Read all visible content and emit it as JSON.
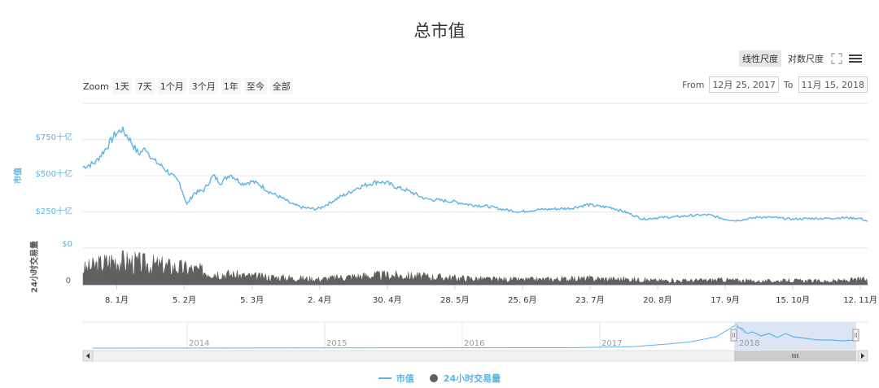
{
  "colors": {
    "market_cap": "#5ab4e6",
    "volume": "#606060",
    "navigator_mask": "#c5d3ec"
  },
  "toolbar": {
    "linear_scale": "线性尺度",
    "log_scale": "对数尺度",
    "active": "linear",
    "fullscreen_icon": "fullscreen-icon",
    "menu_icon": "hamburger-menu-icon"
  },
  "range_selector": {
    "zoom_label": "Zoom",
    "buttons": [
      "1天",
      "7天",
      "1个月",
      "3个月",
      "1年",
      "至今",
      "全部"
    ],
    "from_label": "From",
    "from_value": "12月 25, 2017",
    "to_label": "To",
    "to_value": "11月 15, 2018"
  },
  "chart_data": {
    "type": "area",
    "title": "总市值",
    "y_axes": [
      {
        "title": "市值",
        "ticks": [
          "$750十亿",
          "$500十亿",
          "$250十亿",
          "$0"
        ]
      },
      {
        "title": "24小时交易量",
        "ticks": [
          "0"
        ]
      }
    ],
    "x_ticks": [
      "8. 1月",
      "5. 2月",
      "5. 3月",
      "2. 4月",
      "30. 4月",
      "28. 5月",
      "25. 6月",
      "23. 7月",
      "20. 8月",
      "17. 9月",
      "15. 10月",
      "12. 11月"
    ],
    "series": [
      {
        "name": "市值",
        "unit": "十亿美元",
        "x": [
          "2017-12-25",
          "2017-12-30",
          "2018-01-04",
          "2018-01-07",
          "2018-01-10",
          "2018-01-13",
          "2018-01-17",
          "2018-01-20",
          "2018-01-23",
          "2018-01-27",
          "2018-01-31",
          "2018-02-03",
          "2018-02-06",
          "2018-02-09",
          "2018-02-13",
          "2018-02-17",
          "2018-02-20",
          "2018-02-24",
          "2018-03-01",
          "2018-03-05",
          "2018-03-08",
          "2018-03-12",
          "2018-03-18",
          "2018-03-22",
          "2018-03-26",
          "2018-03-31",
          "2018-04-02",
          "2018-04-06",
          "2018-04-10",
          "2018-04-14",
          "2018-04-18",
          "2018-04-22",
          "2018-04-26",
          "2018-04-30",
          "2018-05-04",
          "2018-05-08",
          "2018-05-12",
          "2018-05-16",
          "2018-05-22",
          "2018-05-28",
          "2018-06-03",
          "2018-06-10",
          "2018-06-16",
          "2018-06-24",
          "2018-07-01",
          "2018-07-08",
          "2018-07-15",
          "2018-07-22",
          "2018-07-26",
          "2018-08-01",
          "2018-08-08",
          "2018-08-14",
          "2018-08-20",
          "2018-08-27",
          "2018-09-03",
          "2018-09-10",
          "2018-09-17",
          "2018-09-21",
          "2018-09-24",
          "2018-10-01",
          "2018-10-08",
          "2018-10-11",
          "2018-10-15",
          "2018-10-22",
          "2018-10-29",
          "2018-11-05",
          "2018-11-12",
          "2018-11-15"
        ],
        "y": [
          560,
          590,
          700,
          780,
          820,
          760,
          650,
          690,
          610,
          560,
          500,
          450,
          300,
          380,
          400,
          500,
          450,
          510,
          445,
          460,
          440,
          390,
          340,
          300,
          280,
          270,
          275,
          310,
          350,
          380,
          420,
          440,
          460,
          450,
          420,
          400,
          370,
          340,
          330,
          320,
          300,
          290,
          270,
          250,
          265,
          270,
          275,
          300,
          290,
          280,
          240,
          200,
          210,
          215,
          225,
          230,
          200,
          190,
          195,
          215,
          210,
          205,
          200,
          205,
          205,
          210,
          205,
          185
        ]
      },
      {
        "name": "24小时交易量",
        "x": [
          "2017-12-25",
          "2018-01-07",
          "2018-01-20",
          "2018-02-05",
          "2018-02-20",
          "2018-03-05",
          "2018-03-20",
          "2018-04-02",
          "2018-04-16",
          "2018-04-30",
          "2018-05-14",
          "2018-05-28",
          "2018-06-11",
          "2018-06-25",
          "2018-07-09",
          "2018-07-23",
          "2018-08-06",
          "2018-08-20",
          "2018-09-03",
          "2018-09-17",
          "2018-10-01",
          "2018-10-15",
          "2018-10-29",
          "2018-11-15"
        ],
        "y": [
          0.55,
          0.9,
          0.75,
          0.6,
          0.4,
          0.3,
          0.25,
          0.2,
          0.3,
          0.35,
          0.3,
          0.25,
          0.2,
          0.18,
          0.2,
          0.22,
          0.2,
          0.15,
          0.15,
          0.18,
          0.12,
          0.15,
          0.12,
          0.2
        ]
      }
    ],
    "navigator": {
      "x_ticks": [
        "2014",
        "2015",
        "2016",
        "2017",
        "2018"
      ],
      "selected_range": [
        "2017-12-25",
        "2018-11-15"
      ]
    },
    "legend": [
      "市值",
      "24小时交易量"
    ],
    "legend_position": "bottom-center",
    "grid": true
  }
}
